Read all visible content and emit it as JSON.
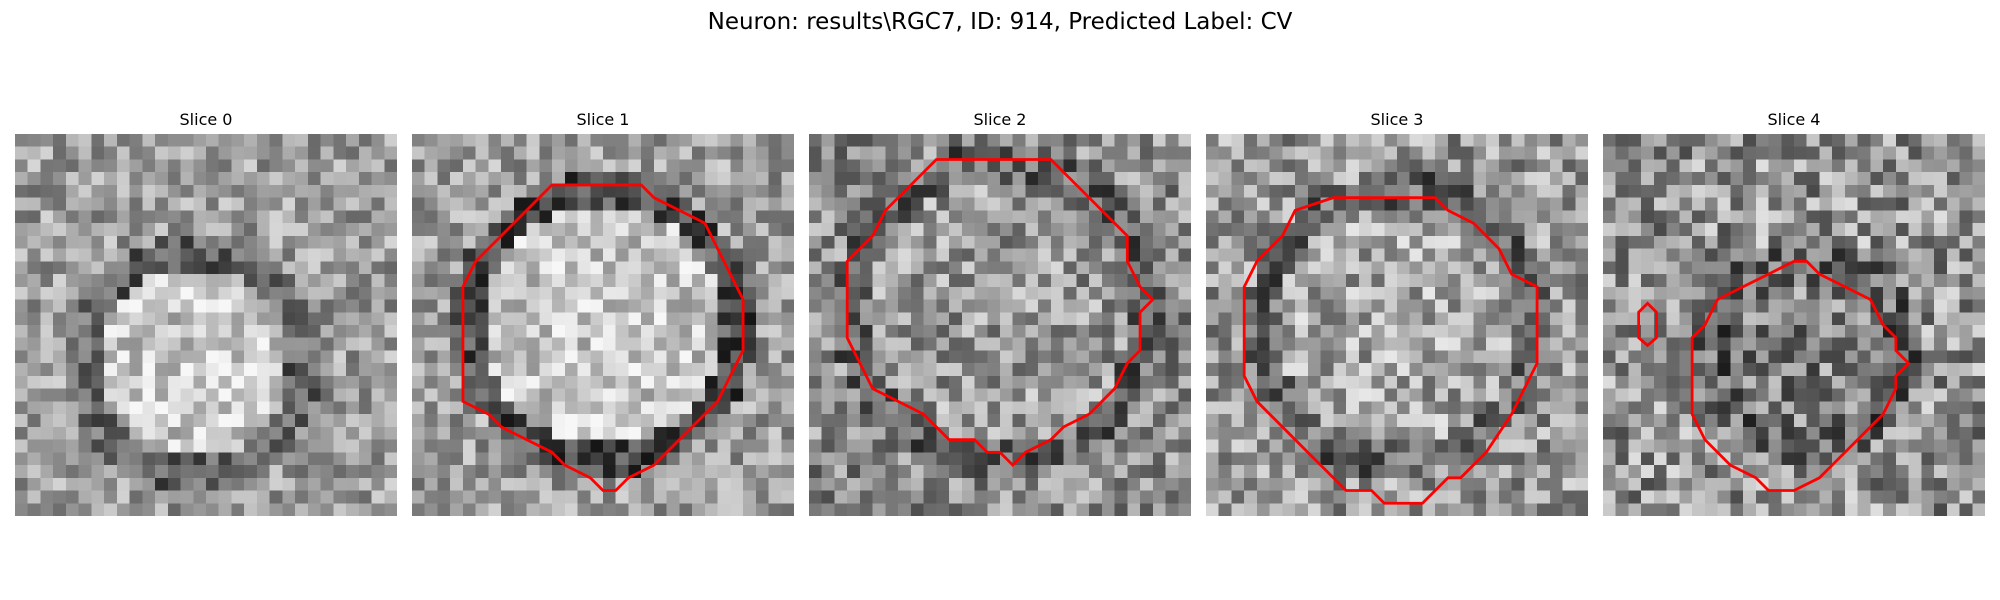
{
  "figure": {
    "title": "Neuron: results\\RGC7, ID: 914, Predicted Label: CV"
  },
  "slices": [
    {
      "title": "Slice 0",
      "has_contour": false
    },
    {
      "title": "Slice 1",
      "has_contour": true
    },
    {
      "title": "Slice 2",
      "has_contour": true
    },
    {
      "title": "Slice 3",
      "has_contour": true
    },
    {
      "title": "Slice 4",
      "has_contour": true
    }
  ],
  "colors": {
    "contour": "#ff0000",
    "colormap": "gray"
  }
}
